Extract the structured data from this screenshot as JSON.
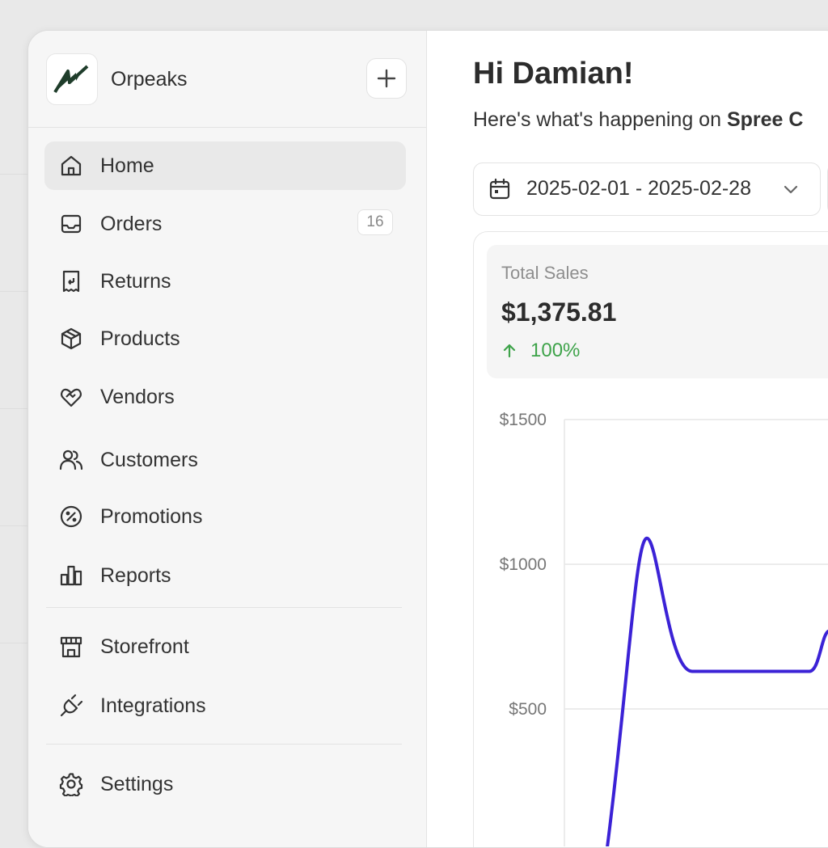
{
  "sidebar": {
    "store_name": "Orpeaks",
    "items": [
      {
        "label": "Home",
        "icon": "home-icon"
      },
      {
        "label": "Orders",
        "icon": "inbox-icon",
        "badge": "16"
      },
      {
        "label": "Returns",
        "icon": "receipt-return-icon"
      },
      {
        "label": "Products",
        "icon": "box-icon"
      },
      {
        "label": "Vendors",
        "icon": "handshake-heart-icon"
      },
      {
        "label": "Customers",
        "icon": "users-icon"
      },
      {
        "label": "Promotions",
        "icon": "percent-icon"
      },
      {
        "label": "Reports",
        "icon": "bar-chart-icon"
      },
      {
        "label": "Storefront",
        "icon": "store-icon"
      },
      {
        "label": "Integrations",
        "icon": "plug-icon"
      },
      {
        "label": "Settings",
        "icon": "gear-icon"
      }
    ],
    "active": "Home"
  },
  "main": {
    "greeting": "Hi Damian!",
    "subtitle_prefix": "Here's what's happening on",
    "subtitle_store": "Spree C",
    "date_range": "2025-02-01 - 2025-02-28",
    "stat": {
      "title": "Total Sales",
      "value": "$1,375.81",
      "change": "100%"
    }
  },
  "colors": {
    "accent": "#3b22d6",
    "positive": "#3ea34a",
    "logo": "#1f3d2b"
  },
  "chart_data": {
    "type": "line",
    "y_ticks": [
      "$1500",
      "$1000",
      "$500"
    ],
    "ylim": [
      0,
      1500
    ],
    "grid": true,
    "series": [
      {
        "values": [
          0,
          1090,
          630,
          630,
          630,
          770
        ]
      }
    ]
  }
}
